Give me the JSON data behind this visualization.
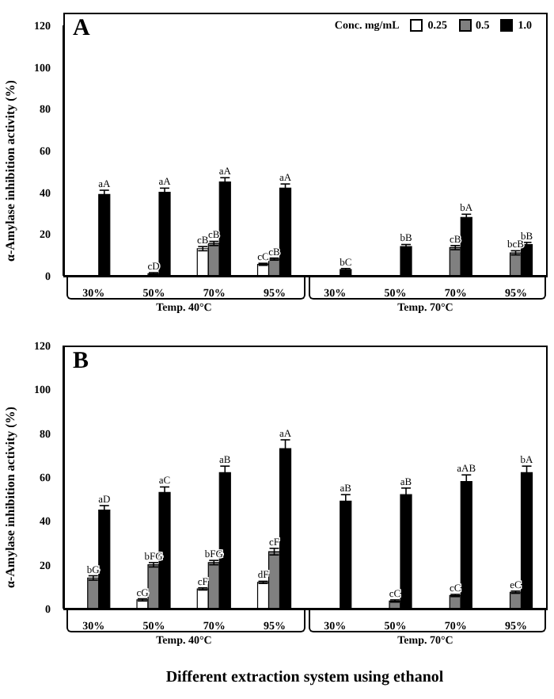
{
  "chart_data": [
    {
      "type": "bar",
      "title": "A",
      "ylabel": "α-Amylase inhibition activity (%)",
      "legend_title": "Conc. mg/mL",
      "legend": "top right",
      "grid": false,
      "categories": [
        "30%",
        "50%",
        "70%",
        "95%",
        "30%",
        "50%",
        "70%",
        "95%"
      ],
      "annotations": [
        "Temp. 40°C",
        "Temp. 70°C"
      ],
      "ylim": [
        0,
        120
      ],
      "yticks": [
        0,
        20,
        40,
        60,
        80,
        100,
        120
      ],
      "series": [
        {
          "name": "0.25",
          "color": "#ffffff",
          "values": [
            0,
            0,
            13,
            5.5,
            0,
            0,
            0,
            0
          ],
          "errors": [
            null,
            null,
            1,
            0.5,
            null,
            null,
            null,
            null
          ],
          "value_labels": [
            null,
            null,
            "cB",
            "cC",
            null,
            null,
            null,
            null
          ]
        },
        {
          "name": "0.5",
          "color": "#808080",
          "values": [
            0,
            1,
            15.5,
            8,
            0,
            0,
            13.5,
            11
          ],
          "errors": [
            null,
            0.5,
            1,
            0.5,
            null,
            null,
            1,
            1
          ],
          "value_labels": [
            null,
            "cD",
            "cB",
            "cB",
            null,
            null,
            "cB",
            "bcB"
          ]
        },
        {
          "name": "1.0",
          "color": "#000000",
          "values": [
            39,
            40,
            45,
            42,
            3,
            14,
            28,
            15
          ],
          "errors": [
            2,
            2,
            2,
            2,
            0.5,
            1,
            1.5,
            1
          ],
          "value_labels": [
            "aA",
            "aA",
            "aA",
            "aA",
            "bC",
            "bB",
            "bA",
            "bB"
          ]
        }
      ]
    },
    {
      "type": "bar",
      "title": "B",
      "ylabel": "α-Amylase inhibition activity (%)",
      "xlabel": "Different extraction system using ethanol",
      "grid": false,
      "categories": [
        "30%",
        "50%",
        "70%",
        "95%",
        "30%",
        "50%",
        "70%",
        "95%"
      ],
      "annotations": [
        "Temp. 40°C",
        "Temp. 70°C"
      ],
      "ylim": [
        0,
        120
      ],
      "yticks": [
        0,
        20,
        40,
        60,
        80,
        100,
        120
      ],
      "series": [
        {
          "name": "0.25",
          "color": "#ffffff",
          "values": [
            0,
            4,
            9,
            12,
            0,
            0,
            0,
            0
          ],
          "errors": [
            null,
            0.5,
            0.5,
            0.5,
            null,
            null,
            null,
            null
          ],
          "value_labels": [
            null,
            "cG",
            "cF",
            "dF",
            null,
            null,
            null,
            null
          ]
        },
        {
          "name": "0.5",
          "color": "#808080",
          "values": [
            14,
            20,
            21,
            26,
            0,
            3.5,
            6,
            7.5
          ],
          "errors": [
            1,
            1,
            1,
            1.5,
            null,
            0.5,
            0.5,
            0.5
          ],
          "value_labels": [
            "bG",
            "bFG",
            "bFG",
            "cF",
            null,
            "cC",
            "cC",
            "eC"
          ]
        },
        {
          "name": "1.0",
          "color": "#000000",
          "values": [
            45,
            53,
            62,
            73,
            49,
            52,
            58,
            62
          ],
          "errors": [
            2,
            2.5,
            3,
            4,
            3,
            3,
            3,
            3
          ],
          "value_labels": [
            "aD",
            "aC",
            "aB",
            "aA",
            "aB",
            "aB",
            "aAB",
            "bA"
          ]
        }
      ]
    }
  ]
}
